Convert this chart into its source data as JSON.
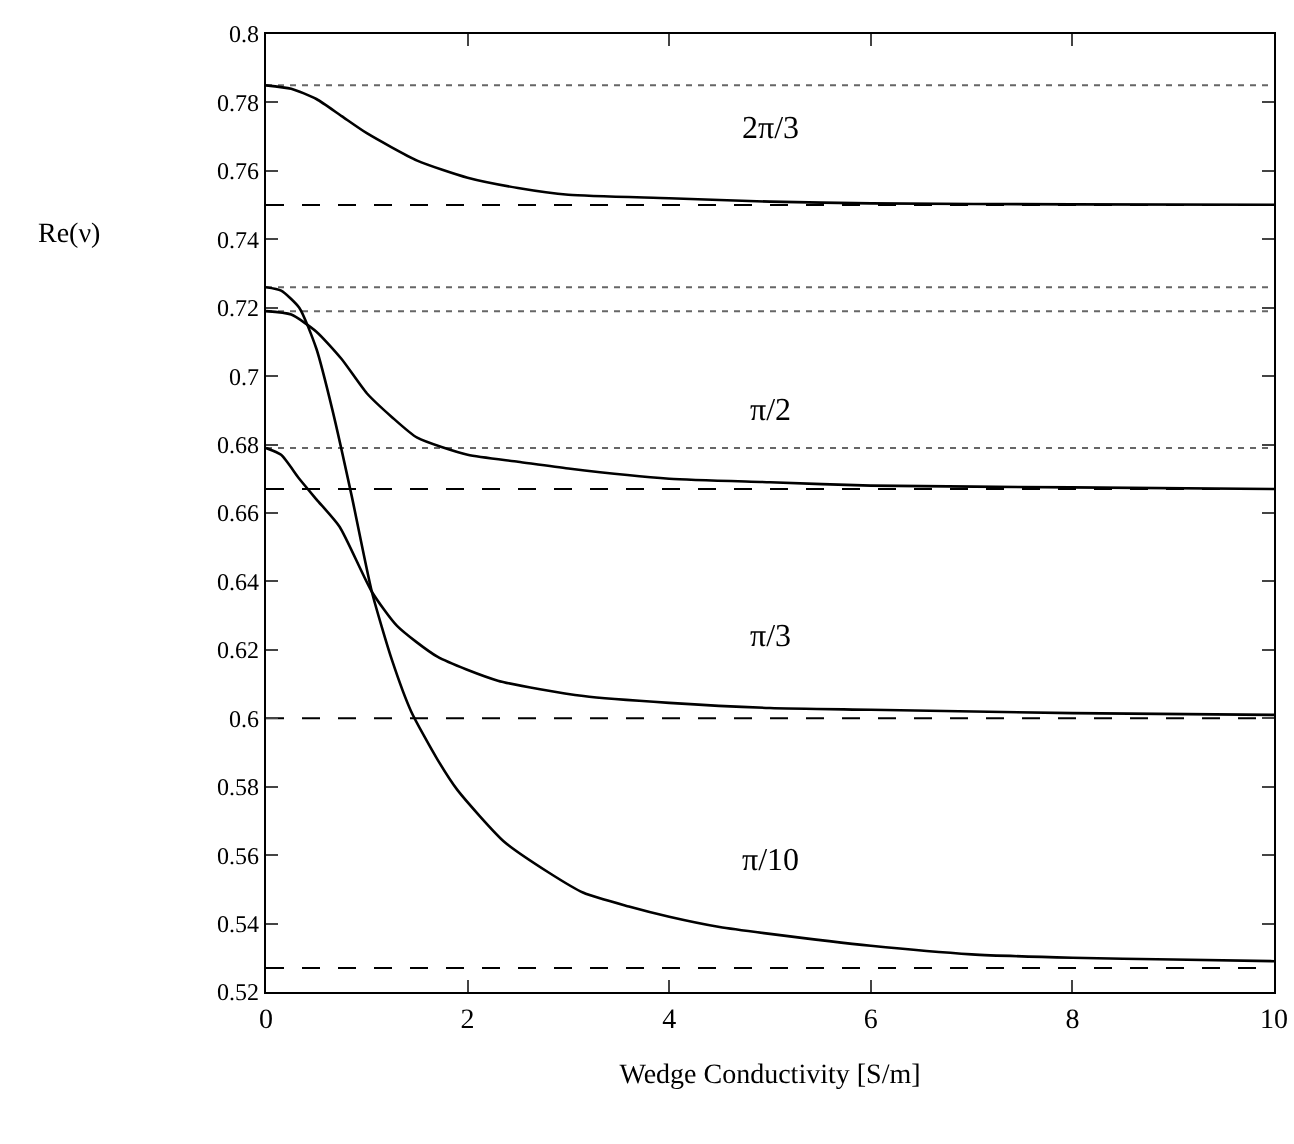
{
  "chart_data": {
    "type": "line",
    "xlabel": "Wedge Conductivity [S/m]",
    "ylabel": "Re(ν)",
    "xlim": [
      0,
      10
    ],
    "xticks": [
      0,
      2,
      4,
      6,
      8,
      10
    ],
    "ylim": [
      0.52,
      0.8
    ],
    "yticks": [
      0.52,
      0.54,
      0.56,
      0.58,
      0.6,
      0.62,
      0.64,
      0.66,
      0.68,
      0.7,
      0.72,
      0.74,
      0.76,
      0.78,
      0.8
    ],
    "grid": false,
    "legend": false,
    "marker": "none",
    "line_style": "solid",
    "series": [
      {
        "name": "2π/3",
        "color": "#000000",
        "x": [
          0,
          0.25,
          0.5,
          0.75,
          1,
          1.5,
          2,
          2.5,
          3,
          4,
          5,
          6,
          8,
          10
        ],
        "values": [
          0.785,
          0.784,
          0.781,
          0.776,
          0.771,
          0.763,
          0.758,
          0.755,
          0.753,
          0.752,
          0.751,
          0.7505,
          0.7502,
          0.7501
        ]
      },
      {
        "name": "π/2",
        "color": "#000000",
        "x": [
          0,
          0.25,
          0.5,
          0.75,
          1,
          1.25,
          1.5,
          2,
          2.5,
          3,
          4,
          5,
          6,
          8,
          10
        ],
        "values": [
          0.719,
          0.718,
          0.713,
          0.705,
          0.695,
          0.688,
          0.682,
          0.677,
          0.675,
          0.673,
          0.67,
          0.669,
          0.668,
          0.6675,
          0.667
        ]
      },
      {
        "name": "π/3",
        "color": "#000000",
        "x": [
          0,
          0.15,
          0.33,
          0.5,
          0.73,
          1.05,
          1.3,
          1.7,
          2.3,
          3.15,
          4,
          5,
          6,
          8,
          10
        ],
        "values": [
          0.679,
          0.677,
          0.67,
          0.664,
          0.656,
          0.637,
          0.627,
          0.618,
          0.611,
          0.6065,
          0.6045,
          0.603,
          0.6025,
          0.6015,
          0.601
        ]
      },
      {
        "name": "π/10",
        "color": "#000000",
        "x": [
          0,
          0.15,
          0.33,
          0.5,
          0.66,
          0.85,
          1.05,
          1.25,
          1.44,
          1.7,
          1.9,
          2.36,
          2.8,
          3.15,
          3.6,
          4,
          4.5,
          5,
          6,
          7,
          8,
          9,
          10
        ],
        "values": [
          0.726,
          0.725,
          0.72,
          0.708,
          0.69,
          0.665,
          0.637,
          0.617,
          0.602,
          0.588,
          0.579,
          0.564,
          0.555,
          0.549,
          0.545,
          0.542,
          0.539,
          0.537,
          0.5335,
          0.531,
          0.53,
          0.5295,
          0.529
        ]
      }
    ],
    "ref_lines": [
      {
        "axis": "y",
        "value": 0.785,
        "line_style": "dotted",
        "color": "#666666"
      },
      {
        "axis": "y",
        "value": 0.726,
        "line_style": "dotted",
        "color": "#666666"
      },
      {
        "axis": "y",
        "value": 0.719,
        "line_style": "dotted",
        "color": "#666666"
      },
      {
        "axis": "y",
        "value": 0.679,
        "line_style": "dotted",
        "color": "#666666"
      },
      {
        "axis": "y",
        "value": 0.75,
        "line_style": "dashed",
        "color": "#000000"
      },
      {
        "axis": "y",
        "value": 0.667,
        "line_style": "dashed",
        "color": "#000000"
      },
      {
        "axis": "y",
        "value": 0.6,
        "line_style": "dashed",
        "color": "#000000"
      },
      {
        "axis": "y",
        "value": 0.527,
        "line_style": "dashed",
        "color": "#000000"
      }
    ]
  }
}
